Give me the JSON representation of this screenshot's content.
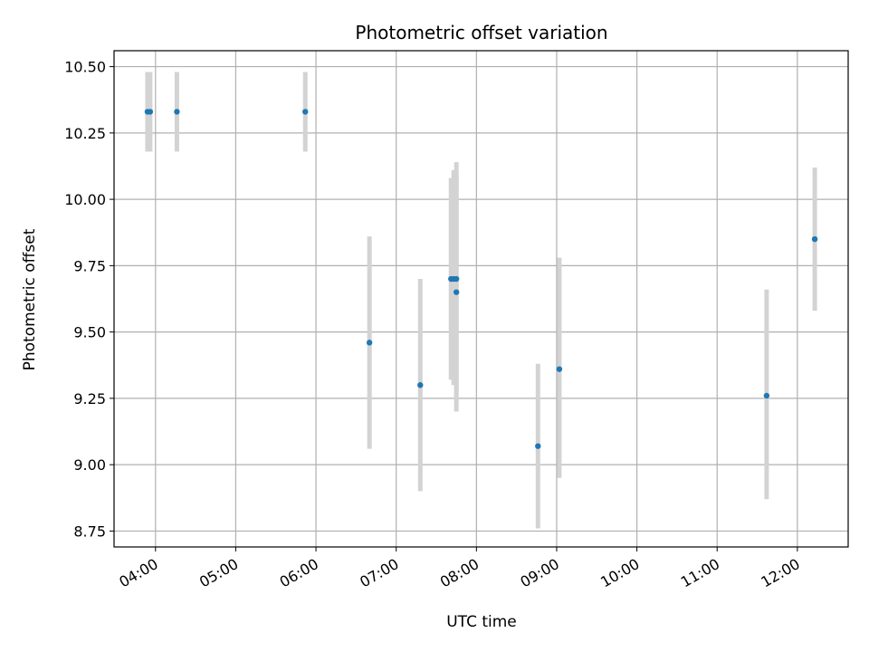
{
  "chart_data": {
    "type": "scatter",
    "title": "Photometric offset variation",
    "xlabel": "UTC time",
    "ylabel": "Photometric offset",
    "x_ticks": [
      "04:00",
      "05:00",
      "06:00",
      "07:00",
      "08:00",
      "09:00",
      "10:00",
      "11:00",
      "12:00"
    ],
    "y_ticks": [
      "8.75",
      "9.00",
      "9.25",
      "9.50",
      "9.75",
      "10.00",
      "10.25",
      "10.50"
    ],
    "xlim": [
      "03:29",
      "12:38"
    ],
    "ylim": [
      8.69,
      10.56
    ],
    "grid": true,
    "point_color": "#1f77b4",
    "errorbar_color": "#d3d3d3",
    "points": [
      {
        "x": "03:54",
        "y": 10.33,
        "low": 10.18,
        "high": 10.48
      },
      {
        "x": "03:56",
        "y": 10.33,
        "low": 10.18,
        "high": 10.48
      },
      {
        "x": "04:16",
        "y": 10.33,
        "low": 10.18,
        "high": 10.48
      },
      {
        "x": "05:52",
        "y": 10.33,
        "low": 10.18,
        "high": 10.48
      },
      {
        "x": "06:40",
        "y": 9.46,
        "low": 9.06,
        "high": 9.86
      },
      {
        "x": "07:18",
        "y": 9.3,
        "low": 8.9,
        "high": 9.7
      },
      {
        "x": "07:41",
        "y": 9.7,
        "low": 9.32,
        "high": 10.08
      },
      {
        "x": "07:43",
        "y": 9.7,
        "low": 9.3,
        "high": 10.11
      },
      {
        "x": "07:45",
        "y": 9.7,
        "low": 9.26,
        "high": 10.14
      },
      {
        "x": "07:45",
        "y": 9.65,
        "low": 9.2,
        "high": 10.1
      },
      {
        "x": "08:46",
        "y": 9.07,
        "low": 8.76,
        "high": 9.38
      },
      {
        "x": "09:02",
        "y": 9.36,
        "low": 8.95,
        "high": 9.78
      },
      {
        "x": "11:37",
        "y": 9.26,
        "low": 8.87,
        "high": 9.66
      },
      {
        "x": "12:13",
        "y": 9.85,
        "low": 9.58,
        "high": 10.12
      }
    ]
  }
}
